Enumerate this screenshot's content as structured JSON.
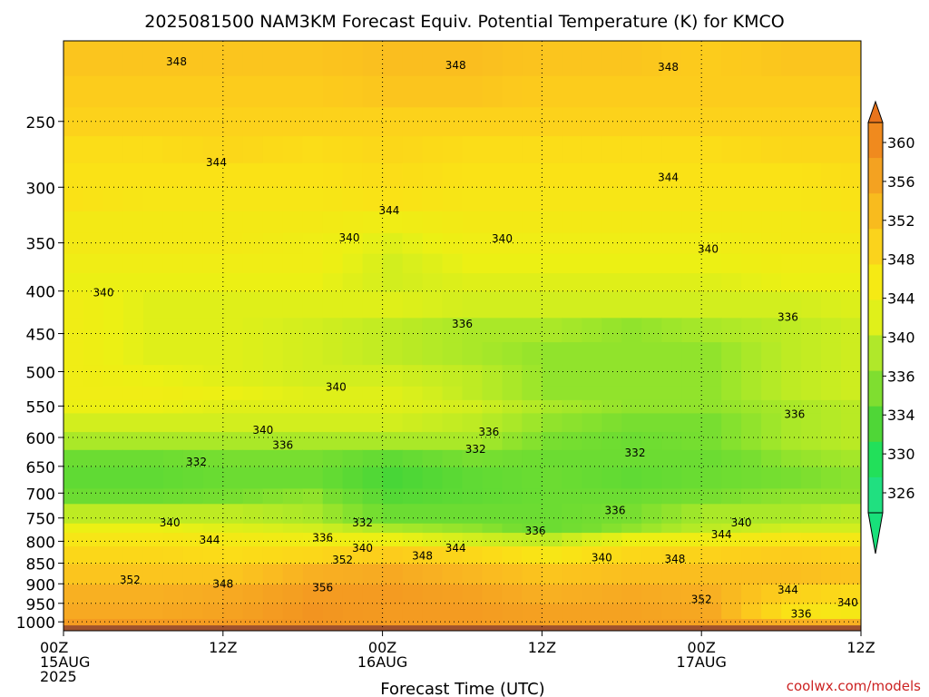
{
  "chart_data": {
    "type": "heatmap",
    "title": "2025081500 NAM3KM Forecast Equiv. Potential Temperature (K) for KMCO",
    "xlabel": "Forecast Time (UTC)",
    "ylabel": "",
    "x_ticks": [
      {
        "line1": "00Z",
        "line2": "15AUG",
        "line3": "2025",
        "hour": 0
      },
      {
        "line1": "12Z",
        "line2": "",
        "line3": "",
        "hour": 12
      },
      {
        "line1": "00Z",
        "line2": "16AUG",
        "line3": "",
        "hour": 24
      },
      {
        "line1": "12Z",
        "line2": "",
        "line3": "",
        "hour": 36
      },
      {
        "line1": "00Z",
        "line2": "17AUG",
        "line3": "",
        "hour": 48
      },
      {
        "line1": "12Z",
        "line2": "",
        "line3": "",
        "hour": 60
      }
    ],
    "xlim_hours": [
      0,
      60
    ],
    "y_ticks": [
      250,
      300,
      350,
      400,
      450,
      500,
      550,
      600,
      650,
      700,
      750,
      800,
      850,
      900,
      950,
      1000
    ],
    "ylim_hpa": [
      1025,
      200
    ],
    "y_scale": "log",
    "grid": "dotted",
    "colorbar": {
      "labels": [
        360,
        356,
        352,
        348,
        344,
        340,
        336,
        334,
        330,
        326
      ],
      "colors": [
        "#f08a1e",
        "#f4a221",
        "#f8bb1e",
        "#fbd31c",
        "#f6ea14",
        "#e0f01a",
        "#b0e82a",
        "#7fde30",
        "#4fd637",
        "#22e05a",
        "#20e080"
      ],
      "min_arrow_color": "#18e07a",
      "max_arrow_color": "#e8741c"
    },
    "band_levels_hpa": [
      1025,
      990,
      950,
      900,
      850,
      810,
      780,
      760,
      720,
      690,
      650,
      620,
      590,
      560,
      540,
      520,
      490,
      460,
      430,
      400,
      380,
      360,
      340,
      320,
      300,
      280,
      260,
      240,
      220,
      200
    ],
    "series": [
      {
        "hour": 0,
        "values": [
          355,
          353,
          352,
          349,
          346,
          343,
          340,
          337,
          333,
          332,
          333,
          336,
          338,
          340,
          341,
          341,
          341,
          341,
          341,
          340,
          341,
          342,
          342,
          344,
          344,
          345,
          347,
          348,
          349,
          349
        ]
      },
      {
        "hour": 6,
        "values": [
          355,
          353,
          352,
          349,
          346,
          343,
          340,
          337,
          333,
          332,
          333,
          336,
          338,
          340,
          341,
          340,
          339,
          339,
          339,
          340,
          341,
          342,
          342,
          343,
          344,
          345,
          347,
          348,
          349,
          349
        ]
      },
      {
        "hour": 12,
        "values": [
          355,
          354,
          353,
          349,
          345,
          342,
          339,
          337,
          334,
          333,
          334,
          336,
          338,
          339,
          340,
          339,
          339,
          339,
          339,
          340,
          341,
          342,
          342,
          343,
          344,
          346,
          347,
          348,
          349,
          350
        ]
      },
      {
        "hour": 18,
        "values": [
          356,
          356,
          355,
          352,
          346,
          341,
          338,
          336,
          335,
          333,
          334,
          336,
          338,
          339,
          339,
          338,
          338,
          338,
          339,
          340,
          341,
          341,
          342,
          343,
          344,
          345,
          347,
          348,
          349,
          350
        ]
      },
      {
        "hour": 24,
        "values": [
          355,
          355,
          355,
          353,
          348,
          340,
          336,
          333,
          331,
          330,
          332,
          336,
          338,
          339,
          339,
          338,
          337,
          337,
          339,
          338,
          338,
          339,
          341,
          344,
          345,
          346,
          347,
          349,
          350,
          350
        ]
      },
      {
        "hour": 30,
        "values": [
          355,
          355,
          354,
          351,
          346,
          338,
          335,
          333,
          332,
          332,
          334,
          336,
          337,
          338,
          337,
          337,
          336,
          336,
          338,
          339,
          340,
          341,
          342,
          343,
          344,
          345,
          347,
          349,
          350,
          350
        ]
      },
      {
        "hour": 36,
        "values": [
          354,
          354,
          352,
          349,
          343,
          337,
          333,
          333,
          333,
          333,
          333,
          334,
          335,
          336,
          335,
          335,
          335,
          336,
          338,
          339,
          340,
          341,
          342,
          343,
          344,
          345,
          347,
          348,
          349,
          349
        ]
      },
      {
        "hour": 42,
        "values": [
          354,
          354,
          353,
          350,
          346,
          340,
          335,
          334,
          333,
          332,
          333,
          333,
          334,
          335,
          335,
          335,
          335,
          335,
          338,
          339,
          340,
          341,
          342,
          343,
          344,
          345,
          347,
          348,
          349,
          349
        ]
      },
      {
        "hour": 48,
        "values": [
          354,
          353,
          352,
          350,
          347,
          341,
          337,
          336,
          334,
          333,
          333,
          334,
          334,
          335,
          335,
          335,
          335,
          336,
          338,
          339,
          340,
          341,
          342,
          343,
          344,
          345,
          347,
          348,
          348,
          349
        ]
      },
      {
        "hour": 54,
        "values": [
          352,
          344,
          347,
          350,
          348,
          343,
          338,
          336,
          335,
          334,
          335,
          336,
          336,
          336,
          337,
          337,
          337,
          337,
          338,
          340,
          341,
          342,
          342,
          343,
          344,
          346,
          347,
          348,
          349,
          349
        ]
      },
      {
        "hour": 60,
        "values": [
          352,
          342,
          345,
          349,
          347,
          342,
          338,
          337,
          335,
          335,
          336,
          337,
          337,
          337,
          338,
          338,
          338,
          338,
          339,
          340,
          341,
          342,
          343,
          344,
          345,
          346,
          347,
          348,
          349,
          349
        ]
      }
    ],
    "contour_labels": [
      {
        "text": "348",
        "hour": 8.5,
        "hpa": 212
      },
      {
        "text": "348",
        "hour": 29.5,
        "hpa": 214
      },
      {
        "text": "348",
        "hour": 45.5,
        "hpa": 215
      },
      {
        "text": "344",
        "hour": 11.5,
        "hpa": 280
      },
      {
        "text": "344",
        "hour": 24.5,
        "hpa": 320
      },
      {
        "text": "344",
        "hour": 45.5,
        "hpa": 292
      },
      {
        "text": "340",
        "hour": 21.5,
        "hpa": 345
      },
      {
        "text": "340",
        "hour": 33,
        "hpa": 346
      },
      {
        "text": "340",
        "hour": 3,
        "hpa": 402
      },
      {
        "text": "340",
        "hour": 48.5,
        "hpa": 356
      },
      {
        "text": "336",
        "hour": 30,
        "hpa": 438
      },
      {
        "text": "336",
        "hour": 54.5,
        "hpa": 430
      },
      {
        "text": "340",
        "hour": 20.5,
        "hpa": 522
      },
      {
        "text": "340",
        "hour": 15,
        "hpa": 588
      },
      {
        "text": "336",
        "hour": 16.5,
        "hpa": 613
      },
      {
        "text": "336",
        "hour": 32,
        "hpa": 591
      },
      {
        "text": "336",
        "hour": 55,
        "hpa": 563
      },
      {
        "text": "332",
        "hour": 10,
        "hpa": 642
      },
      {
        "text": "332",
        "hour": 31,
        "hpa": 620
      },
      {
        "text": "332",
        "hour": 43,
        "hpa": 626
      },
      {
        "text": "336",
        "hour": 41.5,
        "hpa": 735
      },
      {
        "text": "340",
        "hour": 8,
        "hpa": 760
      },
      {
        "text": "332",
        "hour": 22.5,
        "hpa": 760
      },
      {
        "text": "336",
        "hour": 35.5,
        "hpa": 777
      },
      {
        "text": "340",
        "hour": 51,
        "hpa": 760
      },
      {
        "text": "344",
        "hour": 11,
        "hpa": 797
      },
      {
        "text": "336",
        "hour": 19.5,
        "hpa": 792
      },
      {
        "text": "344",
        "hour": 49.5,
        "hpa": 785
      },
      {
        "text": "340",
        "hour": 22.5,
        "hpa": 815
      },
      {
        "text": "344",
        "hour": 29.5,
        "hpa": 815
      },
      {
        "text": "348",
        "hour": 27,
        "hpa": 833
      },
      {
        "text": "340",
        "hour": 40.5,
        "hpa": 837
      },
      {
        "text": "348",
        "hour": 46,
        "hpa": 840
      },
      {
        "text": "352",
        "hour": 21,
        "hpa": 842
      },
      {
        "text": "352",
        "hour": 5,
        "hpa": 890
      },
      {
        "text": "348",
        "hour": 12,
        "hpa": 900
      },
      {
        "text": "356",
        "hour": 19.5,
        "hpa": 910
      },
      {
        "text": "344",
        "hour": 54.5,
        "hpa": 915
      },
      {
        "text": "352",
        "hour": 48,
        "hpa": 940
      },
      {
        "text": "340",
        "hour": 59,
        "hpa": 948
      },
      {
        "text": "336",
        "hour": 55.5,
        "hpa": 978
      }
    ],
    "credit": "coolwx.com/models"
  }
}
